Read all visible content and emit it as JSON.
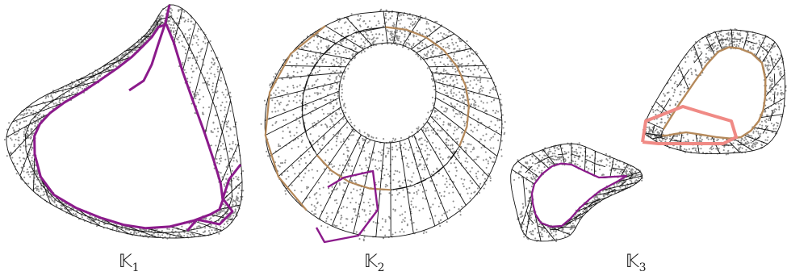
{
  "panels": [
    {
      "symbol": "𝕂",
      "subscript": "1"
    },
    {
      "symbol": "𝕂",
      "subscript": "2"
    },
    {
      "symbol": "𝕂",
      "subscript": "3"
    }
  ],
  "colors": {
    "points": "#8c8c8c",
    "edges": "#111111",
    "cycle_purple": "#8b1a8b",
    "cycle_brown": "#b5895a",
    "cycle_pink": "#f08a85"
  }
}
